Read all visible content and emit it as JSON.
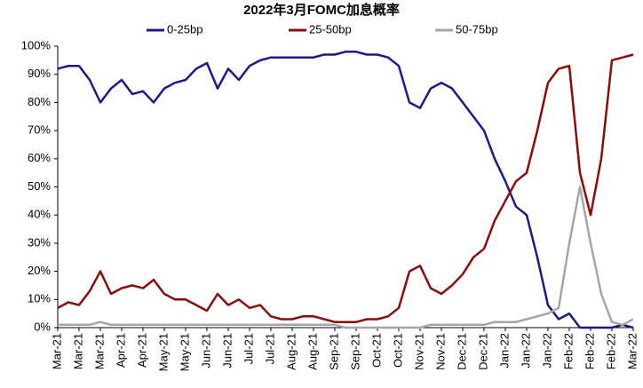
{
  "chart_data": {
    "type": "line",
    "title": "2022年3月FOMC加息概率",
    "categories": [
      "Mar-21",
      null,
      "Mar-21",
      null,
      "Mar-21",
      null,
      "Apr-21",
      null,
      "Apr-21",
      null,
      "May-21",
      null,
      "May-21",
      null,
      "Jun-21",
      null,
      "Jun-21",
      null,
      "Jul-21",
      null,
      "Jul-21",
      null,
      "Aug-21",
      null,
      "Aug-21",
      null,
      "Sep-21",
      null,
      "Sep-21",
      null,
      "Oct-21",
      null,
      "Oct-21",
      null,
      "Nov-21",
      null,
      "Nov-21",
      null,
      "Dec-21",
      null,
      "Dec-21",
      null,
      "Jan-22",
      null,
      "Jan-22",
      null,
      "Jan-22",
      null,
      "Feb-22",
      null,
      "Feb-22",
      null,
      "Feb-22",
      null,
      "Mar-22"
    ],
    "series": [
      {
        "name": "0-25bp",
        "color": "#1a1a8c",
        "values": [
          92,
          93,
          93,
          88,
          80,
          85,
          88,
          83,
          84,
          80,
          85,
          87,
          88,
          92,
          94,
          85,
          92,
          88,
          93,
          95,
          96,
          96,
          96,
          96,
          96,
          97,
          97,
          98,
          98,
          97,
          97,
          96,
          93,
          80,
          78,
          85,
          87,
          85,
          80,
          75,
          70,
          60,
          52,
          43,
          40,
          25,
          8,
          3,
          5,
          0,
          0,
          0,
          0,
          1,
          0
        ]
      },
      {
        "name": "25-50bp",
        "color": "#8b0a0a",
        "values": [
          7,
          9,
          8,
          13,
          20,
          12,
          14,
          15,
          14,
          17,
          12,
          10,
          10,
          8,
          6,
          12,
          8,
          10,
          7,
          8,
          4,
          3,
          3,
          4,
          4,
          3,
          2,
          2,
          2,
          3,
          3,
          4,
          7,
          20,
          22,
          14,
          12,
          15,
          19,
          25,
          28,
          38,
          45,
          52,
          55,
          70,
          87,
          92,
          93,
          55,
          40,
          60,
          95,
          96,
          97
        ]
      },
      {
        "name": "50-75bp",
        "color": "#a6a6a6",
        "values": [
          1,
          1,
          1,
          1,
          2,
          1,
          1,
          1,
          1,
          1,
          1,
          1,
          1,
          1,
          1,
          1,
          1,
          1,
          1,
          1,
          1,
          1,
          1,
          1,
          1,
          1,
          1,
          0,
          0,
          0,
          0,
          0,
          0,
          0,
          0,
          1,
          1,
          1,
          1,
          1,
          1,
          2,
          2,
          2,
          3,
          4,
          5,
          7,
          30,
          50,
          30,
          12,
          2,
          1,
          3
        ]
      }
    ],
    "ylim": [
      0,
      100
    ],
    "yticks": [
      {
        "value": 0,
        "label": "0%"
      },
      {
        "value": 10,
        "label": "10%"
      },
      {
        "value": 20,
        "label": "20%"
      },
      {
        "value": 30,
        "label": "30%"
      },
      {
        "value": 40,
        "label": "40%"
      },
      {
        "value": 50,
        "label": "50%"
      },
      {
        "value": 60,
        "label": "60%"
      },
      {
        "value": 70,
        "label": "70%"
      },
      {
        "value": 80,
        "label": "80%"
      },
      {
        "value": 90,
        "label": "90%"
      },
      {
        "value": 100,
        "label": "100%"
      }
    ],
    "grid": false
  }
}
